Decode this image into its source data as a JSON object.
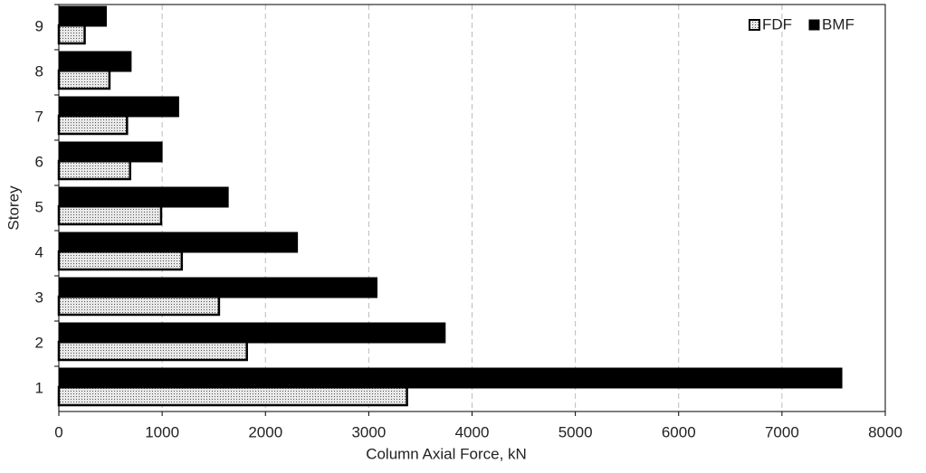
{
  "chart_data": {
    "type": "hbar",
    "xlabel": "Column Axial Force, kN",
    "ylabel": "Storey",
    "categories": [
      "1",
      "2",
      "3",
      "4",
      "5",
      "6",
      "7",
      "8",
      "9"
    ],
    "series": [
      {
        "name": "FDF",
        "color": "#c4c4c4",
        "values": [
          3370,
          1820,
          1550,
          1190,
          990,
          690,
          660,
          490,
          250
        ]
      },
      {
        "name": "BMF",
        "color": "#000000",
        "values": [
          7580,
          3740,
          3080,
          2310,
          1640,
          1000,
          1160,
          700,
          460
        ]
      }
    ],
    "xlim": [
      0,
      8000
    ],
    "xticks": [
      0,
      1000,
      2000,
      3000,
      4000,
      5000,
      6000,
      7000,
      8000
    ],
    "grid": true,
    "legend": "top-right"
  }
}
